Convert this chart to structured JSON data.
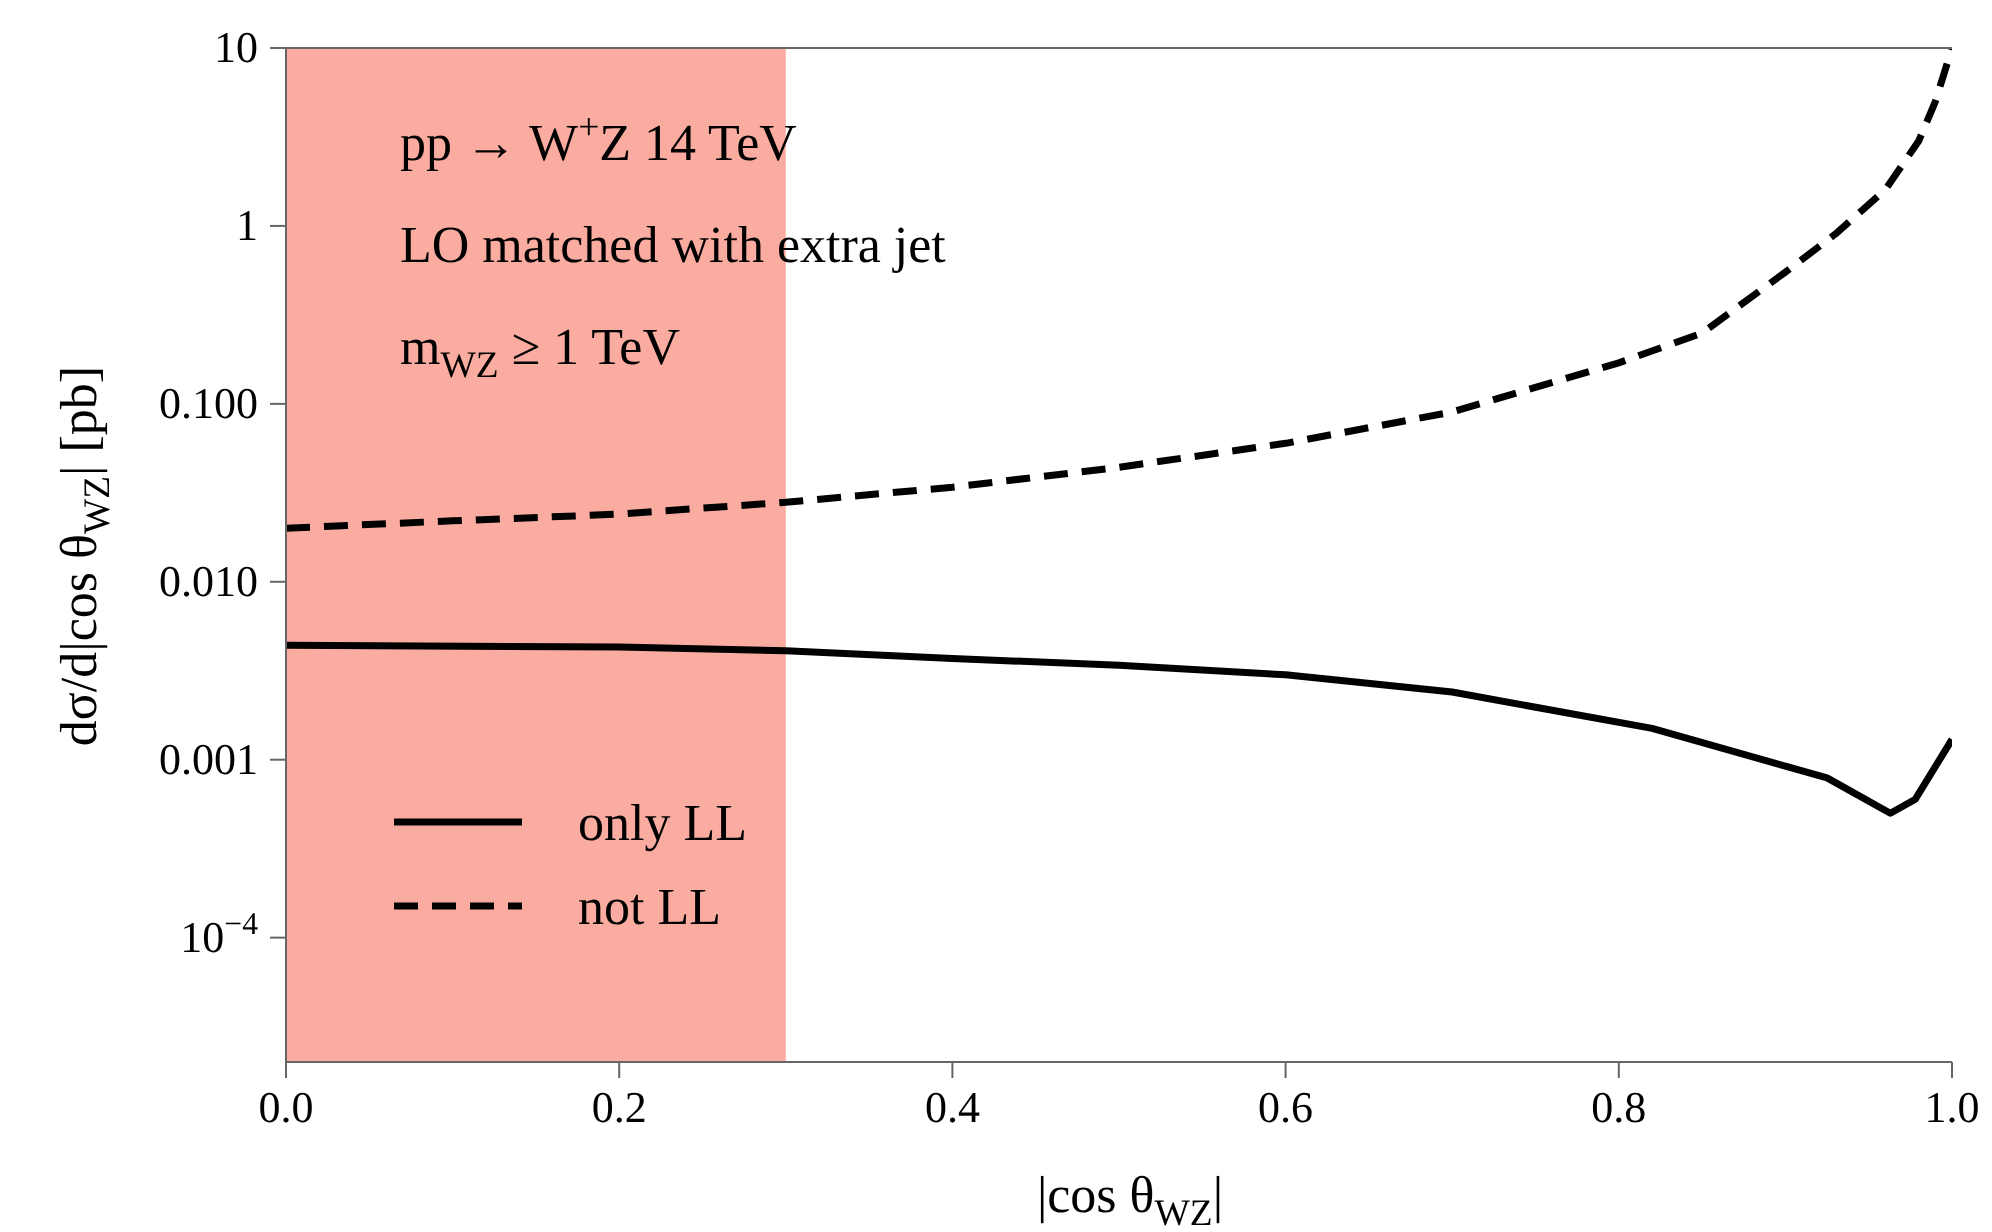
{
  "chart_data": {
    "type": "line",
    "xlabel": "|cos θ$_{WZ}$|",
    "ylabel": "dσ/d|cos θ$_{WZ}$|      [pb]",
    "annotations": [
      "pp → W$^{+}$Z    14 TeV",
      "LO  matched with extra jet",
      "m$_{WZ}$ ≥ 1 TeV"
    ],
    "log": "y",
    "xlim": [
      0,
      1
    ],
    "xticks": [
      {
        "value": 0,
        "label": "0.0"
      },
      0.2,
      0.4,
      0.6,
      0.8,
      {
        "value": 1,
        "label": "1.0"
      }
    ],
    "ylim": [
      2e-05,
      10
    ],
    "yticks": [
      {
        "value": 0.0001,
        "label": "10$^{−4}$"
      },
      0.001,
      {
        "value": 0.01,
        "label": "0.010"
      },
      {
        "value": 0.1,
        "label": "0.100"
      },
      1,
      10
    ],
    "bands": [
      {
        "axis": "x",
        "from": 0,
        "to": 0.3,
        "color": "#fbaca0"
      }
    ],
    "legend": "bottom left",
    "grid": false,
    "series": [
      {
        "name": "only LL",
        "color": "#000000",
        "line_style": "solid",
        "x": [
          0,
          0.2,
          0.3,
          0.4,
          0.5,
          0.6,
          0.7,
          0.82,
          0.925,
          0.963,
          0.978,
          1.0
        ],
        "values": [
          0.0044,
          0.0043,
          0.0041,
          0.0037,
          0.0034,
          0.003,
          0.0024,
          0.0015,
          0.00079,
          0.0005,
          0.0006,
          0.0013
        ]
      },
      {
        "name": "not LL",
        "color": "#000000",
        "line_style": "dashed",
        "x": [
          0,
          0.1,
          0.2,
          0.3,
          0.4,
          0.5,
          0.6,
          0.7,
          0.8,
          0.85,
          0.9,
          0.93,
          0.96,
          0.98,
          0.99,
          1.0
        ],
        "values": [
          0.02,
          0.022,
          0.024,
          0.028,
          0.034,
          0.044,
          0.06,
          0.09,
          0.17,
          0.25,
          0.55,
          0.9,
          1.6,
          3,
          5,
          10
        ]
      }
    ]
  }
}
